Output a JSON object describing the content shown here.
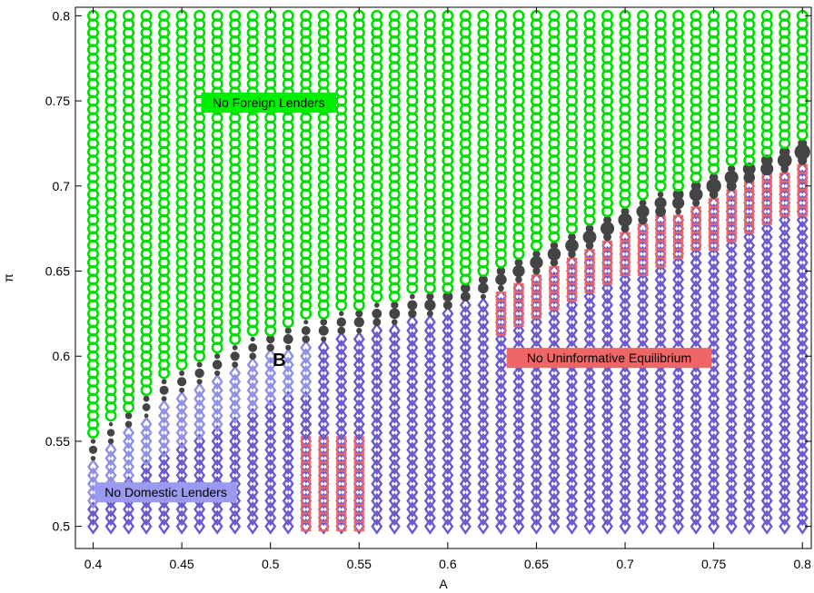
{
  "chart_data": {
    "type": "scatter",
    "title": "",
    "xlabel": "A",
    "ylabel": "π",
    "xlim": [
      0.39,
      0.805
    ],
    "ylim": [
      0.487,
      0.805
    ],
    "x_ticks": [
      "0.4",
      "0.45",
      "0.5",
      "0.55",
      "0.6",
      "0.65",
      "0.7",
      "0.75",
      "0.8"
    ],
    "y_ticks": [
      "0.5",
      "0.55",
      "0.6",
      "0.65",
      "0.7",
      "0.75",
      "0.8"
    ],
    "grid": false,
    "grid_spacing": {
      "x": 0.01,
      "y": 0.005,
      "x_start": 0.4,
      "y_start": 0.5
    },
    "series": [
      {
        "marker": "circle",
        "color": "#00dd00",
        "region": "above boundary"
      },
      {
        "marker": "diamond",
        "color": "#6a5acd",
        "region": "below boundary"
      },
      {
        "marker": "square",
        "color": "#ee6666",
        "region": "A >= 0.52, below boundary, near the upper-right band"
      },
      {
        "marker": "dot",
        "color": "#444444",
        "region": "band along the boundary"
      }
    ],
    "boundary": [
      [
        0.4,
        0.54
      ],
      [
        0.44,
        0.575
      ],
      [
        0.47,
        0.59
      ],
      [
        0.5,
        0.603
      ],
      [
        0.55,
        0.616
      ],
      [
        0.6,
        0.628
      ],
      [
        0.65,
        0.65
      ],
      [
        0.7,
        0.675
      ],
      [
        0.75,
        0.695
      ],
      [
        0.8,
        0.715
      ]
    ],
    "annotations": [
      {
        "text": "No Foreign Lenders",
        "x": 0.499,
        "y": 0.749,
        "bg": "#00ee00"
      },
      {
        "text": "No Uninformative Equilibrium",
        "x": 0.691,
        "y": 0.599,
        "bg": "#ee6666"
      },
      {
        "text": "No Domestic Lenders",
        "x": 0.441,
        "y": 0.52,
        "bg": "#9a9af0"
      },
      {
        "text": "B",
        "x": 0.505,
        "y": 0.598,
        "bg": ""
      }
    ]
  }
}
